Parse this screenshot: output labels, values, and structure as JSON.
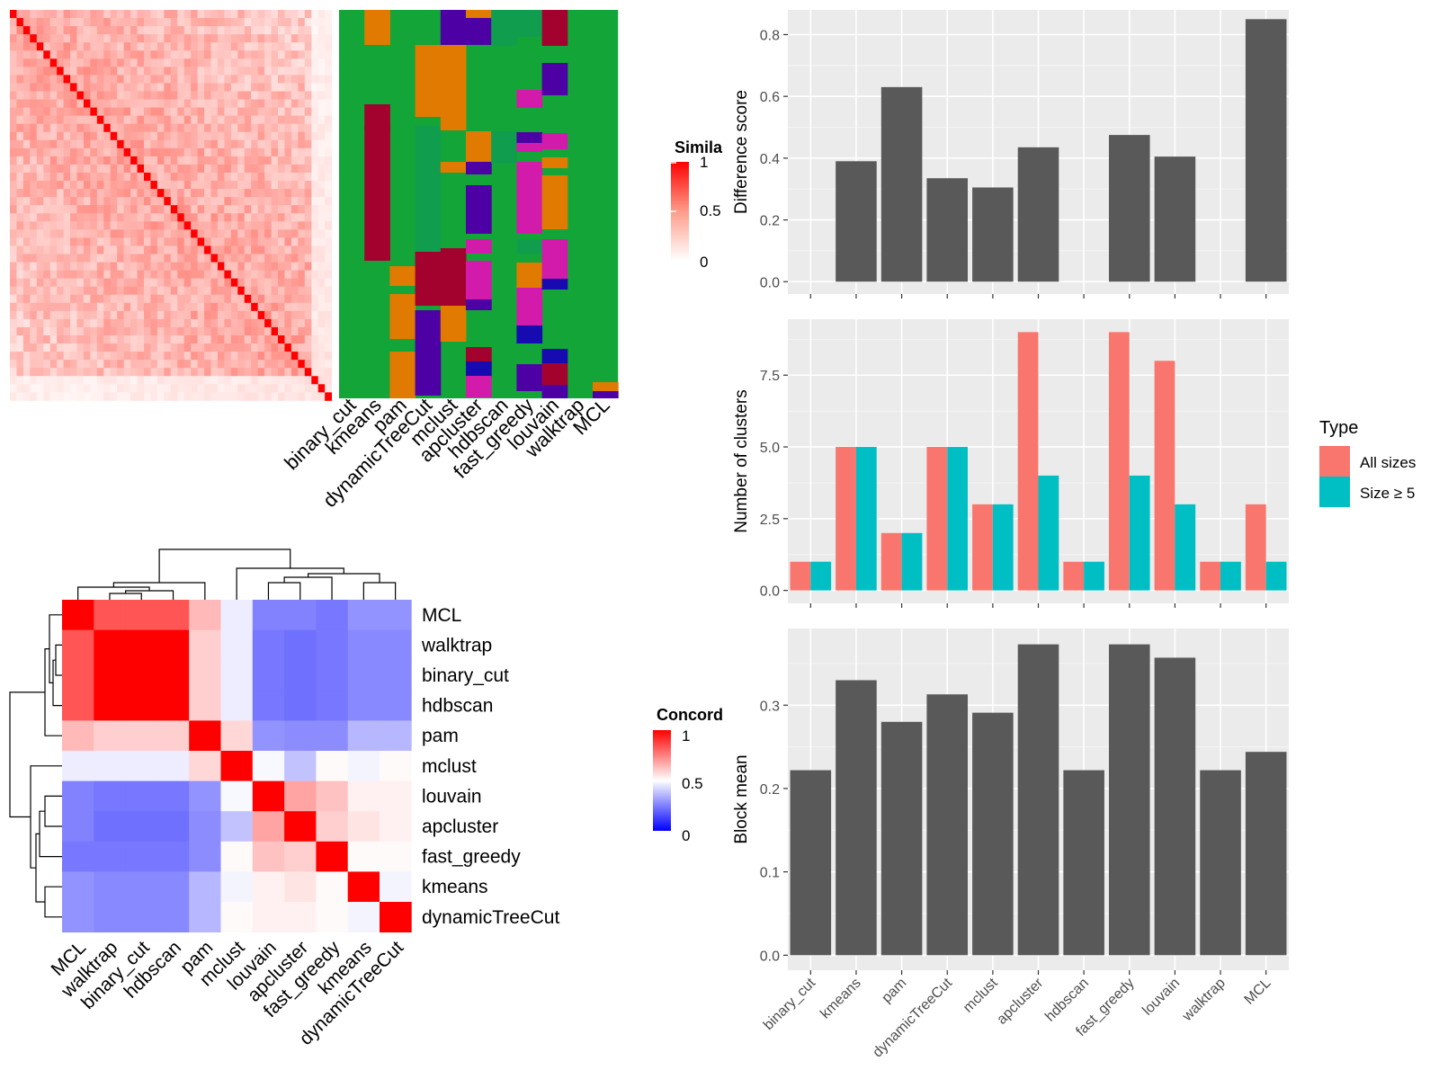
{
  "similarity_panel": {
    "legend_title": "Simila",
    "legend_ticks": [
      "1",
      "0.5",
      "0"
    ],
    "column_labels": [
      "binary_cut",
      "kmeans",
      "pam",
      "dynamicTreeCut",
      "mclust",
      "apcluster",
      "hdbscan",
      "fast_greedy",
      "louvain",
      "walktrap",
      "MCL"
    ],
    "class_colors": [
      "#13A538",
      "#E07A00",
      "#A3022F",
      "#4D01A5",
      "#D21BAB",
      "#109E4E",
      "#160AB0"
    ]
  },
  "concordance_panel": {
    "legend_title": "Concord",
    "legend_ticks": [
      "1",
      "0.5",
      "0"
    ],
    "methods": [
      "MCL",
      "walktrap",
      "binary_cut",
      "hdbscan",
      "pam",
      "mclust",
      "louvain",
      "apcluster",
      "fast_greedy",
      "kmeans",
      "dynamicTreeCut"
    ]
  },
  "chart_data": [
    {
      "type": "bar",
      "title": "",
      "xlabel": "",
      "ylabel": "Difference score",
      "categories": [
        "binary_cut",
        "kmeans",
        "pam",
        "dynamicTreeCut",
        "mclust",
        "apcluster",
        "hdbscan",
        "fast_greedy",
        "louvain",
        "walktrap",
        "MCL"
      ],
      "values": [
        0,
        0.39,
        0.63,
        0.335,
        0.305,
        0.435,
        0,
        0.475,
        0.405,
        0,
        0.85
      ],
      "ylim": [
        -0.04,
        0.88
      ],
      "yticks": [
        0.0,
        0.2,
        0.4,
        0.6,
        0.8
      ],
      "grid": true,
      "color": "#595959"
    },
    {
      "type": "bar",
      "title": "",
      "xlabel": "",
      "ylabel": "Number of clusters",
      "categories": [
        "binary_cut",
        "kmeans",
        "pam",
        "dynamicTreeCut",
        "mclust",
        "apcluster",
        "hdbscan",
        "fast_greedy",
        "louvain",
        "walktrap",
        "MCL"
      ],
      "series": [
        {
          "name": "All sizes",
          "color": "#F8766D",
          "values": [
            1,
            5,
            2,
            5,
            3,
            9,
            1,
            9,
            8,
            1,
            3
          ]
        },
        {
          "name": "Size ≥ 5",
          "color": "#00BFC4",
          "values": [
            1,
            5,
            2,
            5,
            3,
            4,
            1,
            4,
            3,
            1,
            1
          ]
        }
      ],
      "legend_title": "Type",
      "legend_position": "right",
      "ylim": [
        -0.45,
        9.45
      ],
      "yticks": [
        0.0,
        2.5,
        5.0,
        7.5
      ],
      "grid": true
    },
    {
      "type": "bar",
      "title": "",
      "xlabel": "",
      "ylabel": "Block mean",
      "categories": [
        "binary_cut",
        "kmeans",
        "pam",
        "dynamicTreeCut",
        "mclust",
        "apcluster",
        "hdbscan",
        "fast_greedy",
        "louvain",
        "walktrap",
        "MCL"
      ],
      "values": [
        0.222,
        0.33,
        0.28,
        0.313,
        0.291,
        0.373,
        0.222,
        0.373,
        0.357,
        0.222,
        0.244
      ],
      "ylim": [
        -0.018,
        0.392
      ],
      "yticks": [
        0.0,
        0.1,
        0.2,
        0.3
      ],
      "grid": true,
      "color": "#595959"
    }
  ]
}
